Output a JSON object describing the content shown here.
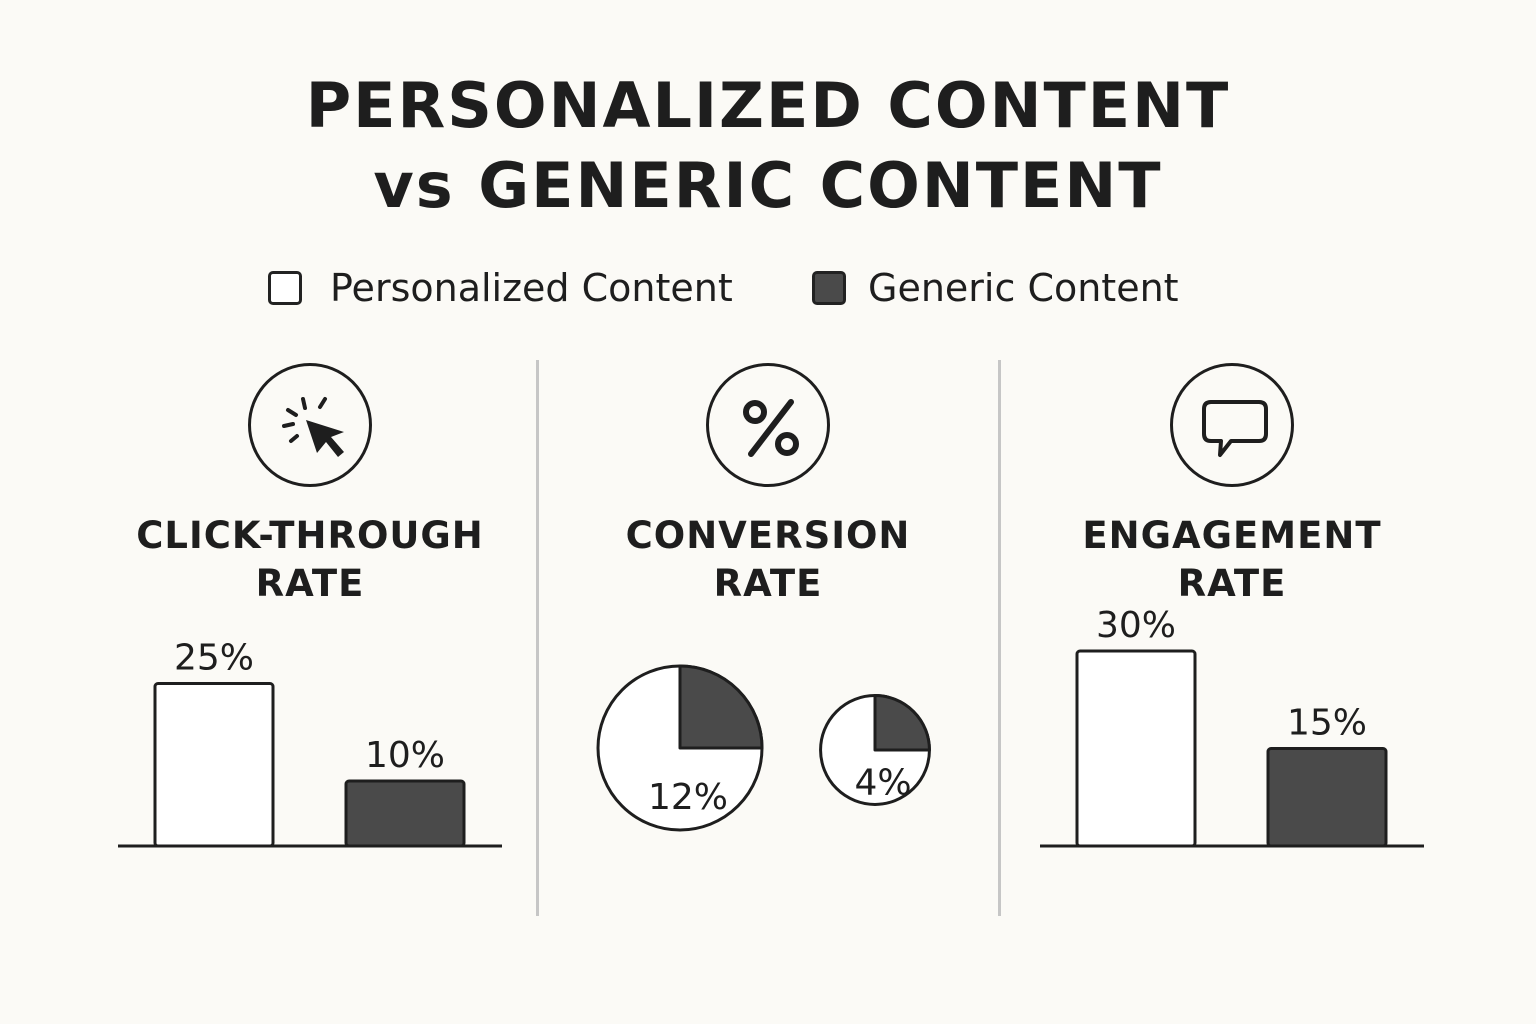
{
  "title": {
    "line1": "PERSONALIZED CONTENT",
    "line2": "vs GENERIC CONTENT"
  },
  "legend": [
    {
      "label": "Personalized Content",
      "color": "#ffffff"
    },
    {
      "label": "Generic Content",
      "color": "#4a4a4a"
    }
  ],
  "colors": {
    "personalized": "#ffffff",
    "generic": "#4a4a4a",
    "stroke": "#1e1e1e"
  },
  "panels": [
    {
      "icon": "cursor-click-icon",
      "title_line1": "CLICK-THROUGH",
      "title_line2": "RATE"
    },
    {
      "icon": "percent-icon",
      "title_line1": "CONVERSION",
      "title_line2": "RATE"
    },
    {
      "icon": "chat-bubble-icon",
      "title_line1": "ENGAGEMENT",
      "title_line2": "RATE"
    }
  ],
  "chart_data": [
    {
      "type": "bar",
      "title": "CLICK-THROUGH RATE",
      "categories": [
        "Personalized Content",
        "Generic Content"
      ],
      "values": [
        25,
        10
      ],
      "labels": [
        "25%",
        "10%"
      ],
      "unit": "%"
    },
    {
      "type": "pie",
      "title": "CONVERSION RATE",
      "categories": [
        "Personalized Content",
        "Generic Content"
      ],
      "values": [
        12,
        4
      ],
      "labels": [
        "12%",
        "4%"
      ],
      "unit": "%"
    },
    {
      "type": "bar",
      "title": "ENGAGEMENT RATE",
      "categories": [
        "Personalized Content",
        "Generic Content"
      ],
      "values": [
        30,
        15
      ],
      "labels": [
        "30%",
        "15%"
      ],
      "unit": "%"
    }
  ]
}
